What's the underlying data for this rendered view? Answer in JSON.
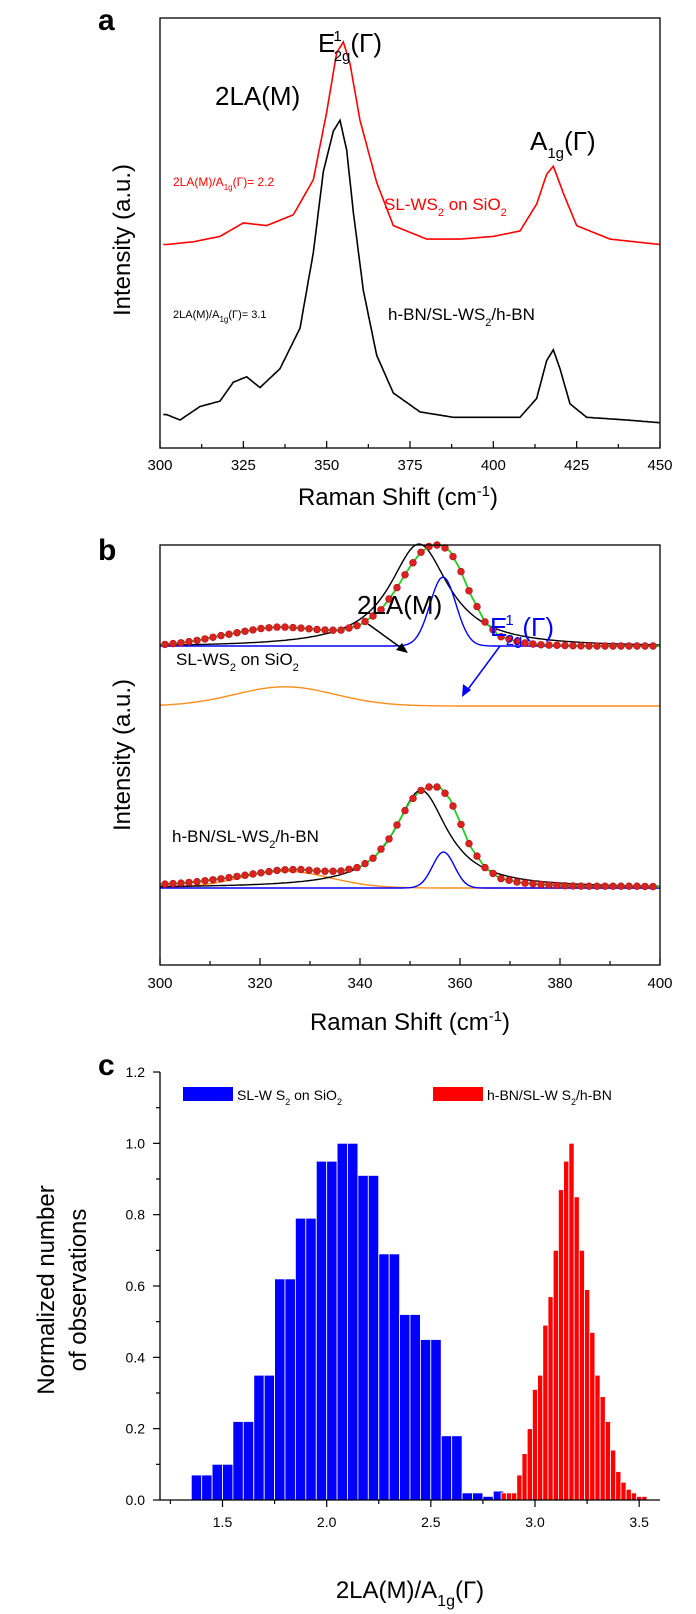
{
  "panels": [
    {
      "letter": "a",
      "ylabel": "Intensity (a.u.)",
      "xlabel": "Raman Shift (cm⁻¹)",
      "xticks": [
        "300",
        "325",
        "350",
        "375",
        "400",
        "425",
        "450"
      ],
      "annotations": {
        "peak_2la": "2LA(M)",
        "peak_e2g": "E¹₂g(Γ)",
        "peak_a1g": "A₁g(Γ)",
        "ratio_red": "2LA(M)/A₁g(Γ)= 2.2",
        "ratio_black": "2LA(M)/A₁g(Γ)= 3.1",
        "label_red": "SL-WS₂ on SiO₂",
        "label_black": "h-BN/SL-WS₂/h-BN"
      },
      "colors": {
        "sio2": "#ff0000",
        "hbn": "#000000"
      }
    },
    {
      "letter": "b",
      "ylabel": "Intensity (a.u.)",
      "xlabel": "Raman Shift (cm⁻¹)",
      "xticks": [
        "300",
        "320",
        "340",
        "360",
        "380",
        "400"
      ],
      "annotations": {
        "peak_2la": "2LA(M)",
        "peak_e2g": "E¹₂g(Γ)",
        "label_top": "SL-WS₂ on SiO₂",
        "label_bottom": "h-BN/SL-WS₂/h-BN"
      },
      "colors": {
        "data": "#e02020",
        "fit": "#22cc22",
        "la": "#000000",
        "e2g": "#0000ff",
        "low": "#ff8c1a"
      }
    },
    {
      "letter": "c",
      "ylabel_line1": "Normalized number",
      "ylabel_line2": "of observations",
      "xlabel": "2LA(M)/A₁g(Γ)",
      "xticks": [
        "1.5",
        "2.0",
        "2.5",
        "3.0",
        "3.5"
      ],
      "yticks": [
        "0.0",
        "0.2",
        "0.4",
        "0.6",
        "0.8",
        "1.0",
        "1.2"
      ],
      "legend": [
        "SL-WS₂ on SiO₂",
        "h-BN/SL-WS₂/h-BN"
      ],
      "colors": {
        "sio2": "#0000ff",
        "hbn": "#ff0000"
      }
    }
  ],
  "chart_data": [
    {
      "type": "line",
      "xlabel": "Raman Shift (cm⁻¹)",
      "ylabel": "Intensity (a.u.)",
      "xlim": [
        300,
        450
      ],
      "series": [
        {
          "name": "SL-WS₂ on SiO₂",
          "color": "#ff0000",
          "x": [
            302,
            310,
            318,
            325,
            332,
            340,
            346,
            350,
            353,
            355,
            357,
            360,
            365,
            370,
            380,
            390,
            400,
            408,
            413,
            416,
            418,
            421,
            425,
            435,
            450
          ],
          "y": [
            0.75,
            0.76,
            0.78,
            0.83,
            0.82,
            0.86,
            0.99,
            1.24,
            1.46,
            1.5,
            1.42,
            1.21,
            0.98,
            0.82,
            0.77,
            0.77,
            0.78,
            0.8,
            0.9,
            1.01,
            1.04,
            0.94,
            0.82,
            0.77,
            0.75
          ]
        },
        {
          "name": "h-BN/SL-WS₂/h-BN",
          "color": "#000000",
          "x": [
            302,
            306,
            312,
            318,
            322,
            326,
            330,
            336,
            342,
            346,
            349,
            352,
            354,
            356,
            358,
            361,
            365,
            370,
            378,
            388,
            400,
            408,
            413,
            416,
            418,
            420,
            423,
            428,
            440,
            450
          ],
          "y": [
            0.12,
            0.1,
            0.15,
            0.17,
            0.24,
            0.26,
            0.22,
            0.29,
            0.44,
            0.72,
            1.02,
            1.17,
            1.21,
            1.1,
            0.87,
            0.58,
            0.34,
            0.2,
            0.13,
            0.11,
            0.11,
            0.11,
            0.18,
            0.32,
            0.36,
            0.29,
            0.16,
            0.11,
            0.1,
            0.09
          ]
        }
      ]
    },
    {
      "type": "line",
      "xlabel": "Raman Shift (cm⁻¹)",
      "ylabel": "Intensity (a.u.)",
      "xlim": [
        300,
        400
      ],
      "series": [
        {
          "name": "SL-WS₂ on SiO₂",
          "color": "#e02020",
          "marker": "circle",
          "x": [
            300,
            304,
            308,
            312,
            316,
            320,
            324,
            328,
            332,
            336,
            340,
            344,
            347,
            350,
            352,
            354,
            356,
            358,
            360,
            362,
            365,
            368,
            372,
            376,
            380,
            385,
            390,
            395,
            400
          ],
          "y": [
            1.02,
            1.05,
            1.1,
            1.17,
            1.23,
            1.29,
            1.32,
            1.3,
            1.27,
            1.26,
            1.35,
            1.58,
            1.92,
            2.32,
            2.55,
            2.67,
            2.69,
            2.58,
            2.28,
            1.88,
            1.4,
            1.16,
            1.06,
            1.02,
            1.01,
            1.0,
            1.0,
            1.0,
            1.0
          ]
        },
        {
          "name": "h-BN/SL-WS₂/h-BN",
          "color": "#e02020",
          "marker": "circle",
          "x": [
            300,
            304,
            308,
            312,
            316,
            320,
            324,
            328,
            332,
            336,
            340,
            343,
            346,
            348,
            350,
            352,
            354,
            356,
            358,
            360,
            362,
            365,
            368,
            372,
            376,
            380,
            385,
            390,
            395,
            400
          ],
          "y": [
            0.06,
            0.08,
            0.11,
            0.15,
            0.2,
            0.25,
            0.3,
            0.31,
            0.28,
            0.28,
            0.35,
            0.52,
            0.84,
            1.14,
            1.44,
            1.62,
            1.69,
            1.68,
            1.48,
            1.1,
            0.7,
            0.34,
            0.16,
            0.09,
            0.06,
            0.04,
            0.03,
            0.03,
            0.03,
            0.02
          ]
        }
      ]
    },
    {
      "type": "bar",
      "xlabel": "2LA(M)/A₁g(Γ)",
      "ylabel": "Normalized number of observations",
      "xlim": [
        1.2,
        3.6
      ],
      "ylim": [
        0,
        1.2
      ],
      "series": [
        {
          "name": "SL-WS₂ on SiO₂",
          "color": "#0000ff",
          "x": [
            1.375,
            1.425,
            1.475,
            1.525,
            1.575,
            1.625,
            1.675,
            1.725,
            1.775,
            1.825,
            1.875,
            1.925,
            1.975,
            2.025,
            2.075,
            2.125,
            2.175,
            2.225,
            2.275,
            2.325,
            2.375,
            2.425,
            2.475,
            2.525,
            2.575,
            2.625,
            2.675,
            2.725,
            2.775,
            2.825
          ],
          "values": [
            0.07,
            0.07,
            0.1,
            0.1,
            0.22,
            0.22,
            0.35,
            0.35,
            0.62,
            0.62,
            0.79,
            0.79,
            0.95,
            0.95,
            1.0,
            1.0,
            0.91,
            0.91,
            0.69,
            0.69,
            0.52,
            0.52,
            0.45,
            0.45,
            0.18,
            0.18,
            0.02,
            0.02,
            0.01,
            0.025
          ]
        },
        {
          "name": "h-BN/SL-WS₂/h-BN",
          "color": "#ff0000",
          "x": [
            2.85,
            2.875,
            2.9,
            2.925,
            2.95,
            2.975,
            3.0,
            3.025,
            3.05,
            3.075,
            3.1,
            3.125,
            3.15,
            3.175,
            3.2,
            3.225,
            3.25,
            3.275,
            3.3,
            3.325,
            3.35,
            3.375,
            3.4,
            3.425,
            3.45,
            3.475,
            3.5,
            3.525
          ],
          "values": [
            0.02,
            0.02,
            0.02,
            0.07,
            0.13,
            0.2,
            0.31,
            0.35,
            0.49,
            0.57,
            0.7,
            0.87,
            0.95,
            1.0,
            0.85,
            0.7,
            0.59,
            0.47,
            0.35,
            0.29,
            0.22,
            0.14,
            0.08,
            0.05,
            0.03,
            0.02,
            0.01,
            0.01
          ]
        }
      ]
    }
  ]
}
